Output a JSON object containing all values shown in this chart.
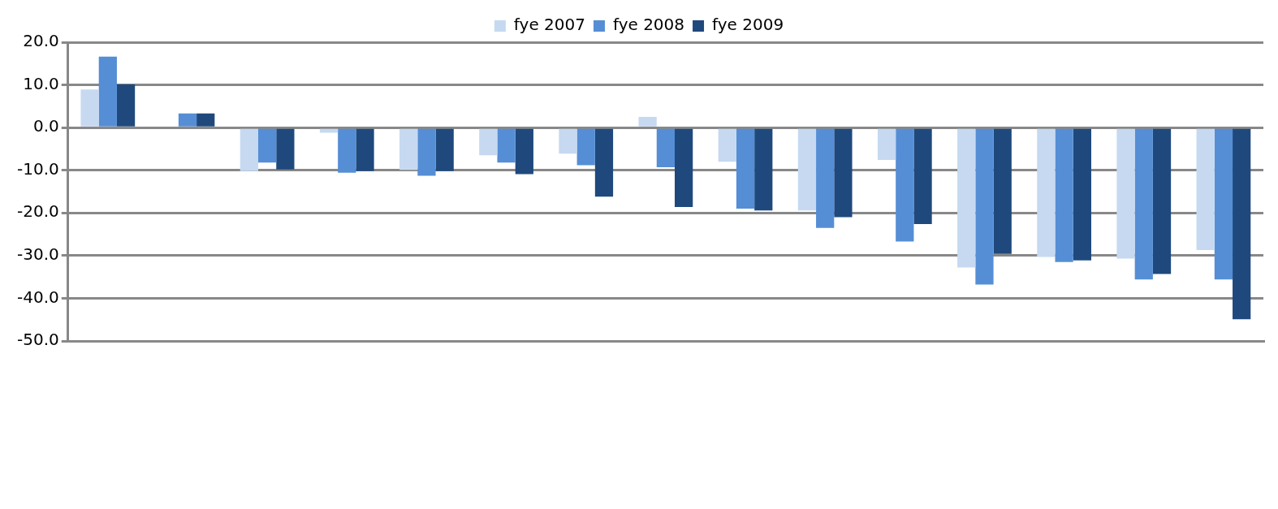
{
  "chart_data": {
    "type": "bar",
    "categories": [
      null,
      null,
      null,
      null,
      null,
      null,
      null,
      null,
      null,
      null,
      null,
      null,
      null,
      null,
      null
    ],
    "series": [
      {
        "name": "fye 2007",
        "color": "#c6d9f1",
        "values": [
          8.9,
          null,
          -10.2,
          -1.2,
          -9.9,
          -6.5,
          -6.1,
          2.5,
          -8.0,
          -19.4,
          -7.6,
          -32.8,
          -30.3,
          -30.7,
          -28.7
        ]
      },
      {
        "name": "fye 2008",
        "color": "#558ed5",
        "values": [
          16.6,
          3.3,
          -8.2,
          -10.6,
          -11.3,
          -8.2,
          -8.8,
          -9.3,
          -19.0,
          -23.5,
          -26.7,
          -36.8,
          -31.5,
          -35.6,
          -35.6
        ]
      },
      {
        "name": "fye 2009",
        "color": "#1f497d",
        "values": [
          10.1,
          3.3,
          -9.8,
          -10.2,
          -10.2,
          -10.9,
          -16.2,
          -18.6,
          -19.4,
          -21.0,
          -22.6,
          -29.6,
          -31.1,
          -34.3,
          -44.9
        ]
      }
    ],
    "ylim": [
      -50,
      20
    ],
    "yticks": [
      {
        "value": -50,
        "label": "-50.0"
      },
      {
        "value": -40,
        "label": "-40.0"
      },
      {
        "value": -30,
        "label": "-30.0"
      },
      {
        "value": -20,
        "label": "-20.0"
      },
      {
        "value": -10,
        "label": "-10.0"
      },
      {
        "value": 0,
        "label": "0.0"
      },
      {
        "value": 10,
        "label": "10.0"
      },
      {
        "value": 20,
        "label": "20.0"
      }
    ],
    "grid": "y",
    "legend": "top"
  }
}
